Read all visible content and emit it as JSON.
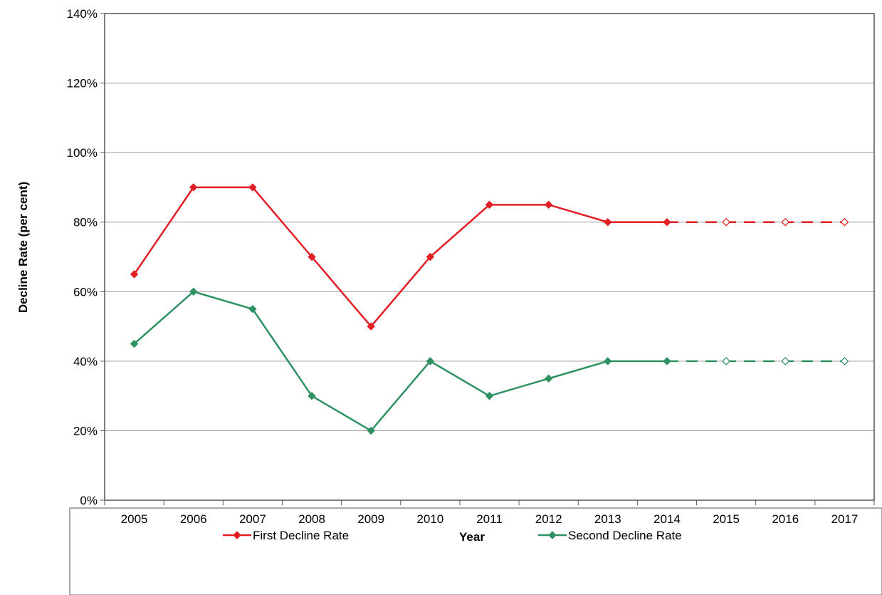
{
  "chart_data": {
    "type": "line",
    "title": "",
    "xlabel": "Year",
    "ylabel": "Decline Rate (per cent)",
    "categories": [
      "2005",
      "2006",
      "2007",
      "2008",
      "2009",
      "2010",
      "2011",
      "2012",
      "2013",
      "2014",
      "2015",
      "2016",
      "2017"
    ],
    "ylim": [
      0,
      1.4
    ],
    "yticks": [
      0,
      0.2,
      0.4,
      0.6,
      0.8,
      1.0,
      1.2,
      1.4
    ],
    "ytick_labels": [
      "0%",
      "20%",
      "40%",
      "60%",
      "80%",
      "100%",
      "120%",
      "140%"
    ],
    "grid": "horizontal",
    "legend_position": "bottom",
    "series": [
      {
        "name": "First Decline Rate",
        "color": "#e31e24",
        "values": [
          0.65,
          0.9,
          0.9,
          0.7,
          0.5,
          0.7,
          0.85,
          0.85,
          0.8,
          0.8,
          0.8,
          0.8,
          0.8
        ],
        "projected_from_index": 9
      },
      {
        "name": "Second Decline Rate",
        "color": "#2e9161",
        "values": [
          0.45,
          0.6,
          0.55,
          0.3,
          0.2,
          0.4,
          0.3,
          0.35,
          0.4,
          0.4,
          0.4,
          0.4,
          0.4
        ],
        "projected_from_index": 9
      }
    ]
  }
}
